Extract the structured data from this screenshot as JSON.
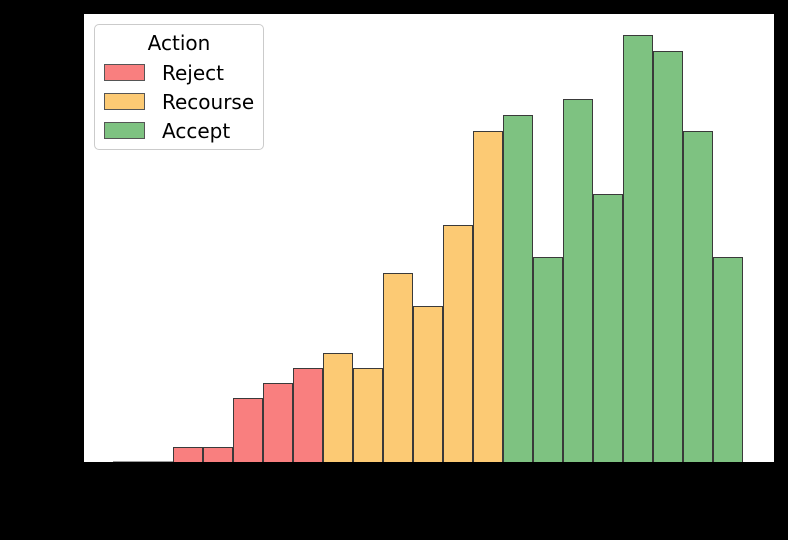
{
  "figure": {
    "outer_background": "#000000",
    "plot_background": "#ffffff",
    "tick_labels_visible": false,
    "axis_titles_visible": false
  },
  "legend": {
    "title": "Action",
    "position": "upper-left",
    "items": [
      {
        "label": "Reject",
        "color": "#f97f7f"
      },
      {
        "label": "Recourse",
        "color": "#fcca74"
      },
      {
        "label": "Accept",
        "color": "#7ec281"
      }
    ]
  },
  "chart_data": {
    "type": "bar",
    "subtype": "histogram",
    "title": "",
    "xlabel": "",
    "ylabel": "",
    "grid": false,
    "legend_position": "upper left",
    "legend_title": "Action",
    "legend_entries": [
      "Reject",
      "Recourse",
      "Accept"
    ],
    "group_colors": {
      "Reject": "#f97f7f",
      "Recourse": "#fcca74",
      "Accept": "#7ec281"
    },
    "bar_edge_color": "#3a3a3a",
    "n_bins": 21,
    "note_axis_values": "no axis tick labels are visible in the image; bar values are relative (percent of tallest bar)",
    "bins": [
      {
        "index": 1,
        "group": "Reject",
        "value_pct_of_max": 0
      },
      {
        "index": 2,
        "group": "Reject",
        "value_pct_of_max": 0
      },
      {
        "index": 3,
        "group": "Reject",
        "value_pct_of_max": 3.5
      },
      {
        "index": 4,
        "group": "Reject",
        "value_pct_of_max": 3.5
      },
      {
        "index": 5,
        "group": "Reject",
        "value_pct_of_max": 15
      },
      {
        "index": 6,
        "group": "Reject",
        "value_pct_of_max": 18.5
      },
      {
        "index": 7,
        "group": "Reject",
        "value_pct_of_max": 22
      },
      {
        "index": 8,
        "group": "Recourse",
        "value_pct_of_max": 25.5
      },
      {
        "index": 9,
        "group": "Recourse",
        "value_pct_of_max": 22
      },
      {
        "index": 10,
        "group": "Recourse",
        "value_pct_of_max": 44.3
      },
      {
        "index": 11,
        "group": "Recourse",
        "value_pct_of_max": 36.5
      },
      {
        "index": 12,
        "group": "Recourse",
        "value_pct_of_max": 55.5
      },
      {
        "index": 13,
        "group": "Recourse",
        "value_pct_of_max": 77.5
      },
      {
        "index": 14,
        "group": "Accept",
        "value_pct_of_max": 81.3
      },
      {
        "index": 15,
        "group": "Accept",
        "value_pct_of_max": 48
      },
      {
        "index": 16,
        "group": "Accept",
        "value_pct_of_max": 85
      },
      {
        "index": 17,
        "group": "Accept",
        "value_pct_of_max": 62.8
      },
      {
        "index": 18,
        "group": "Accept",
        "value_pct_of_max": 100
      },
      {
        "index": 19,
        "group": "Accept",
        "value_pct_of_max": 96.3
      },
      {
        "index": 20,
        "group": "Accept",
        "value_pct_of_max": 77.5
      },
      {
        "index": 21,
        "group": "Accept",
        "value_pct_of_max": 48
      }
    ]
  }
}
